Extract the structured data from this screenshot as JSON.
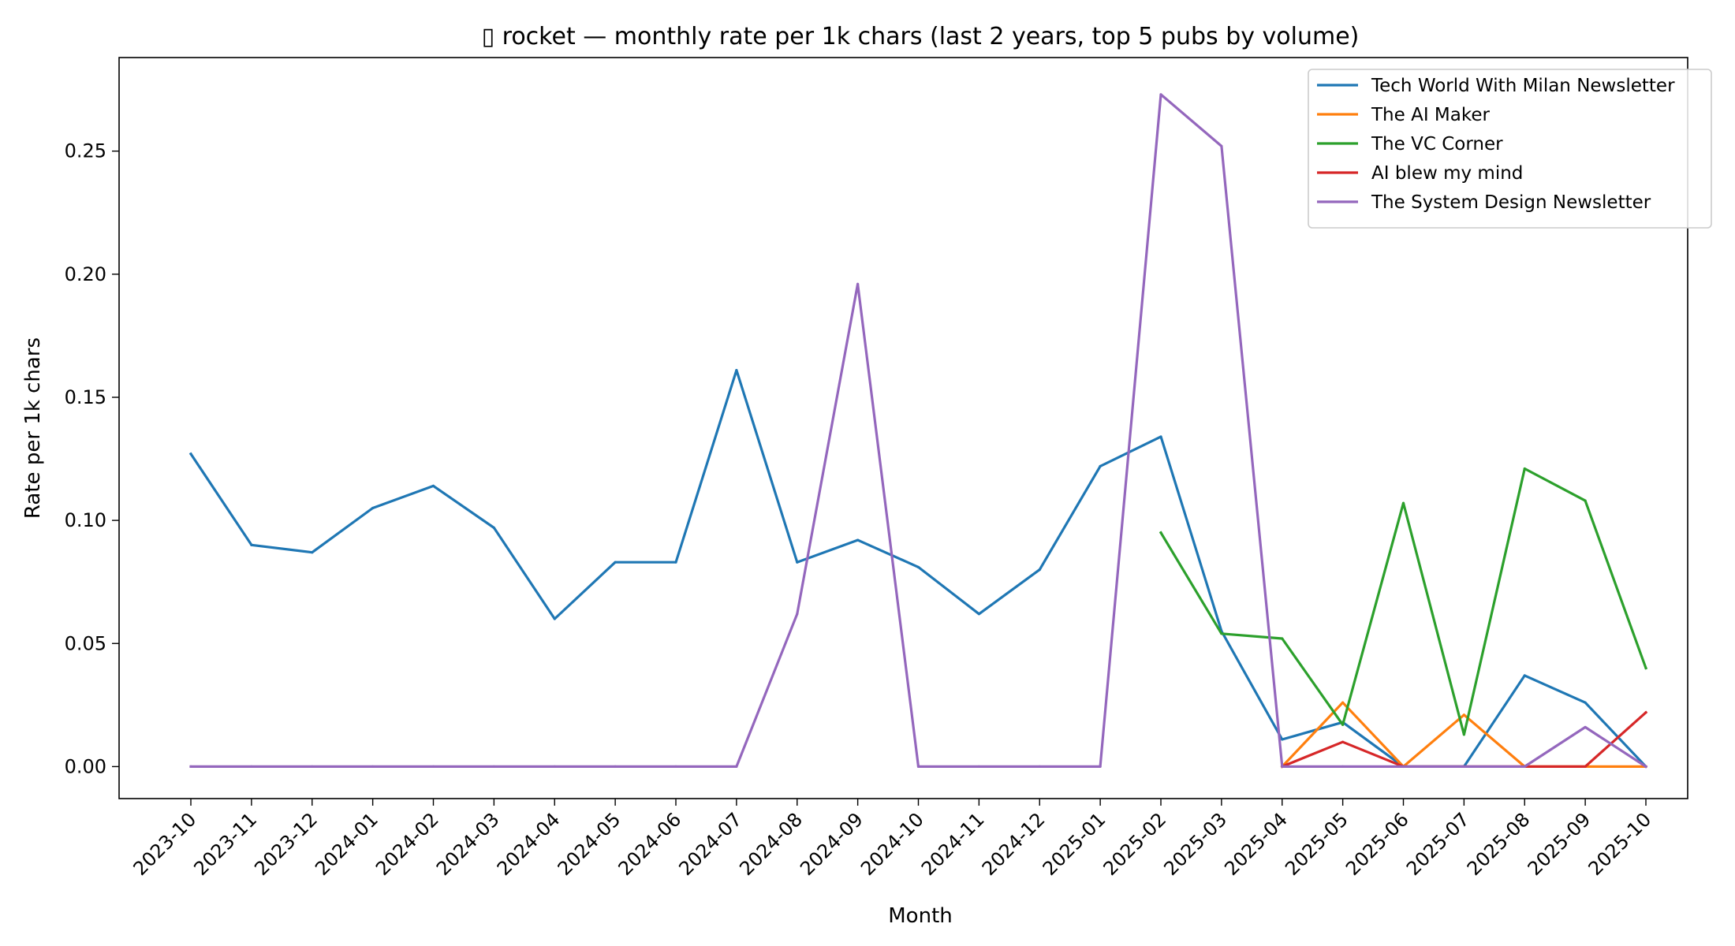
{
  "chart_data": {
    "type": "line",
    "title": "▯ rocket — monthly rate per 1k chars (last 2 years, top 5 pubs by volume)",
    "xlabel": "Month",
    "ylabel": "Rate per 1k chars",
    "categories": [
      "2023-10",
      "2023-11",
      "2023-12",
      "2024-01",
      "2024-02",
      "2024-03",
      "2024-04",
      "2024-05",
      "2024-06",
      "2024-07",
      "2024-08",
      "2024-09",
      "2024-10",
      "2024-11",
      "2024-12",
      "2025-01",
      "2025-02",
      "2025-03",
      "2025-04",
      "2025-05",
      "2025-06",
      "2025-07",
      "2025-08",
      "2025-09",
      "2025-10"
    ],
    "ylim": [
      -0.013,
      0.288
    ],
    "yticks": [
      0.0,
      0.05,
      0.1,
      0.15,
      0.2,
      0.25
    ],
    "ytick_labels": [
      "0.00",
      "0.05",
      "0.10",
      "0.15",
      "0.20",
      "0.25"
    ],
    "grid": false,
    "legend_position": "top-right",
    "series": [
      {
        "name": "Tech World With Milan Newsletter",
        "color": "#1f77b4",
        "values": [
          0.127,
          0.09,
          0.087,
          0.105,
          0.114,
          0.097,
          0.06,
          0.083,
          0.083,
          0.161,
          0.083,
          0.092,
          0.081,
          0.062,
          0.08,
          0.122,
          0.134,
          0.055,
          0.011,
          0.018,
          0.0,
          0.0,
          0.037,
          0.026,
          0.0
        ]
      },
      {
        "name": "The AI Maker",
        "color": "#ff7f0e",
        "values": [
          null,
          null,
          null,
          null,
          null,
          null,
          null,
          null,
          null,
          null,
          null,
          null,
          null,
          null,
          null,
          null,
          null,
          null,
          0.0,
          0.026,
          0.0,
          0.021,
          0.0,
          0.0,
          0.0
        ]
      },
      {
        "name": "The VC Corner",
        "color": "#2ca02c",
        "values": [
          null,
          null,
          null,
          null,
          null,
          null,
          null,
          null,
          null,
          null,
          null,
          null,
          null,
          null,
          null,
          null,
          0.095,
          0.054,
          0.052,
          0.017,
          0.107,
          0.013,
          0.121,
          0.108,
          0.04
        ]
      },
      {
        "name": "AI blew my mind",
        "color": "#d62728",
        "values": [
          null,
          null,
          null,
          null,
          null,
          null,
          null,
          null,
          null,
          null,
          null,
          null,
          null,
          null,
          null,
          null,
          null,
          null,
          0.0,
          0.01,
          0.0,
          0.0,
          0.0,
          0.0,
          0.022
        ]
      },
      {
        "name": "The System Design Newsletter",
        "color": "#9467bd",
        "values": [
          0.0,
          0.0,
          0.0,
          0.0,
          0.0,
          0.0,
          0.0,
          0.0,
          0.0,
          0.0,
          0.062,
          0.196,
          0.0,
          0.0,
          0.0,
          0.0,
          0.273,
          0.252,
          0.0,
          0.0,
          0.0,
          0.0,
          0.0,
          0.016,
          0.0
        ]
      }
    ]
  }
}
